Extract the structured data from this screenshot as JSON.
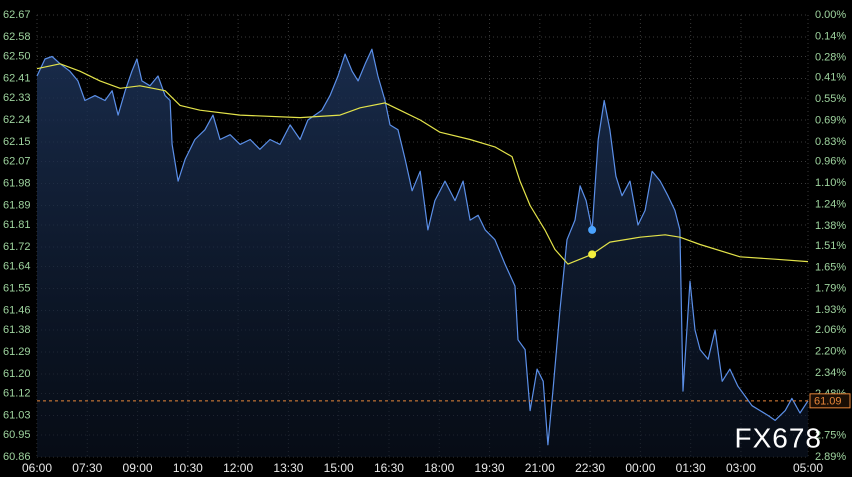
{
  "chart_data": {
    "type": "line",
    "xlim": [
      0,
      23
    ],
    "xticks": [
      {
        "value": 0,
        "label": "06:00"
      },
      {
        "value": 1.5,
        "label": "07:30"
      },
      {
        "value": 3,
        "label": "09:00"
      },
      {
        "value": 4.5,
        "label": "10:30"
      },
      {
        "value": 6,
        "label": "12:00"
      },
      {
        "value": 7.5,
        "label": "13:30"
      },
      {
        "value": 9,
        "label": "15:00"
      },
      {
        "value": 10.5,
        "label": "16:30"
      },
      {
        "value": 12,
        "label": "18:00"
      },
      {
        "value": 13.5,
        "label": "19:30"
      },
      {
        "value": 15,
        "label": "21:00"
      },
      {
        "value": 16.5,
        "label": "22:30"
      },
      {
        "value": 18,
        "label": "00:00"
      },
      {
        "value": 19.5,
        "label": "01:30"
      },
      {
        "value": 21,
        "label": "03:00"
      },
      {
        "value": 23,
        "label": "05:00"
      }
    ],
    "ylim": [
      60.86,
      62.67
    ],
    "yticks": [
      62.67,
      62.58,
      {
        "value": 62.5,
        "label": "62.50"
      },
      62.41,
      62.33,
      62.24,
      62.15,
      62.07,
      61.98,
      61.89,
      61.81,
      61.72,
      61.64,
      61.55,
      61.46,
      61.38,
      61.29,
      {
        "value": 61.2,
        "label": "61.20"
      },
      61.12,
      61.03,
      60.95,
      60.86
    ],
    "y2lim": [
      2.89,
      0
    ],
    "y2ticks": [
      {
        "value": 0,
        "label": "0.00%"
      },
      {
        "value": 0.14,
        "label": "0.14%"
      },
      {
        "value": 0.28,
        "label": "0.28%"
      },
      {
        "value": 0.41,
        "label": "0.41%"
      },
      {
        "value": 0.55,
        "label": "0.55%"
      },
      {
        "value": 0.69,
        "label": "0.69%"
      },
      {
        "value": 0.83,
        "label": "0.83%"
      },
      {
        "value": 0.96,
        "label": "0.96%"
      },
      {
        "value": 1.1,
        "label": "1.10%"
      },
      {
        "value": 1.24,
        "label": "1.24%"
      },
      {
        "value": 1.38,
        "label": "1.38%"
      },
      {
        "value": 1.51,
        "label": "1.51%"
      },
      {
        "value": 1.65,
        "label": "1.65%"
      },
      {
        "value": 1.79,
        "label": "1.79%"
      },
      {
        "value": 1.93,
        "label": "1.93%"
      },
      {
        "value": 2.06,
        "label": "2.06%"
      },
      {
        "value": 2.2,
        "label": "2.20%"
      },
      {
        "value": 2.34,
        "label": "2.34%"
      },
      {
        "value": 2.48,
        "label": "2.48%"
      },
      {
        "value": 2.75,
        "label": "2.75%"
      },
      {
        "value": 2.89,
        "label": "2.89%"
      }
    ],
    "grid": true,
    "series": [
      {
        "color": "#5b8fe8",
        "fill": true,
        "x": [
          0,
          0.24,
          0.45,
          0.69,
          0.98,
          1.22,
          1.43,
          1.73,
          2.03,
          2.24,
          2.42,
          2.63,
          2.83,
          2.98,
          3.13,
          3.37,
          3.61,
          3.82,
          3.97,
          4.03,
          4.21,
          4.42,
          4.71,
          5.01,
          5.25,
          5.46,
          5.76,
          6.06,
          6.36,
          6.65,
          6.95,
          7.25,
          7.55,
          7.85,
          8.08,
          8.29,
          8.5,
          8.74,
          8.98,
          9.19,
          9.4,
          9.58,
          9.79,
          9.99,
          10.17,
          10.38,
          10.53,
          10.77,
          10.98,
          11.19,
          11.43,
          11.66,
          11.87,
          12.17,
          12.47,
          12.71,
          12.92,
          13.16,
          13.37,
          13.66,
          13.96,
          14.26,
          14.35,
          14.56,
          14.71,
          14.92,
          15.1,
          15.24,
          15.39,
          15.6,
          15.81,
          16.05,
          16.2,
          16.38,
          16.56,
          16.74,
          16.92,
          17.09,
          17.27,
          17.45,
          17.69,
          17.93,
          18.14,
          18.35,
          18.59,
          18.82,
          19.03,
          19.18,
          19.27,
          19.48,
          19.63,
          19.78,
          20.02,
          20.23,
          20.44,
          20.67,
          20.91,
          21.12,
          21.33,
          21.57,
          21.81,
          22.02,
          22.32,
          22.52,
          22.76,
          23
        ],
        "values": [
          62.42,
          62.49,
          62.5,
          62.47,
          62.44,
          62.4,
          62.32,
          62.34,
          62.32,
          62.36,
          62.26,
          62.36,
          62.44,
          62.49,
          62.4,
          62.38,
          62.42,
          62.34,
          62.32,
          62.14,
          61.99,
          62.08,
          62.16,
          62.2,
          62.26,
          62.16,
          62.18,
          62.14,
          62.16,
          62.12,
          62.16,
          62.14,
          62.22,
          62.16,
          62.24,
          62.26,
          62.28,
          62.34,
          62.42,
          62.51,
          62.44,
          62.4,
          62.47,
          62.53,
          62.42,
          62.32,
          62.22,
          62.2,
          62.08,
          61.95,
          62.03,
          61.79,
          61.91,
          61.99,
          61.91,
          61.99,
          61.83,
          61.85,
          61.79,
          61.75,
          61.65,
          61.56,
          61.34,
          61.3,
          61.05,
          61.22,
          61.17,
          60.91,
          61.13,
          61.46,
          61.75,
          61.83,
          61.97,
          61.91,
          61.79,
          62.16,
          62.32,
          62.2,
          62.01,
          61.93,
          61.99,
          61.81,
          61.87,
          62.03,
          61.99,
          61.93,
          61.87,
          61.79,
          61.13,
          61.58,
          61.38,
          61.3,
          61.26,
          61.38,
          61.17,
          61.22,
          61.15,
          61.11,
          61.07,
          61.05,
          61.03,
          61.01,
          61.05,
          61.1,
          61.04,
          61.09
        ]
      },
      {
        "color": "#e3e34a",
        "fill": false,
        "x": [
          0,
          0.69,
          1.28,
          1.88,
          2.48,
          3.07,
          3.82,
          4.27,
          4.86,
          6.06,
          7.85,
          9.04,
          9.64,
          10.38,
          10.83,
          11.43,
          12.02,
          12.92,
          13.66,
          14.17,
          14.41,
          14.71,
          15.15,
          15.45,
          15.84,
          16.2,
          16.56,
          17.09,
          17.99,
          18.74,
          19.18,
          19.78,
          20.97,
          22.02,
          23
        ],
        "values": [
          62.45,
          62.47,
          62.44,
          62.4,
          62.37,
          62.38,
          62.36,
          62.3,
          62.28,
          62.26,
          62.25,
          62.26,
          62.29,
          62.31,
          62.28,
          62.24,
          62.19,
          62.16,
          62.13,
          62.09,
          61.99,
          61.89,
          61.79,
          61.71,
          61.65,
          61.67,
          61.69,
          61.74,
          61.76,
          61.77,
          61.76,
          61.73,
          61.68,
          61.67,
          61.66
        ]
      }
    ],
    "points": [
      {
        "x": 16.56,
        "y": 61.79,
        "color": "#4aa3ff"
      },
      {
        "x": 16.56,
        "y": 61.69,
        "color": "#f5f03c"
      }
    ],
    "last_price": {
      "value": 61.09,
      "color": "#e8863a"
    },
    "watermark": "FX678"
  }
}
